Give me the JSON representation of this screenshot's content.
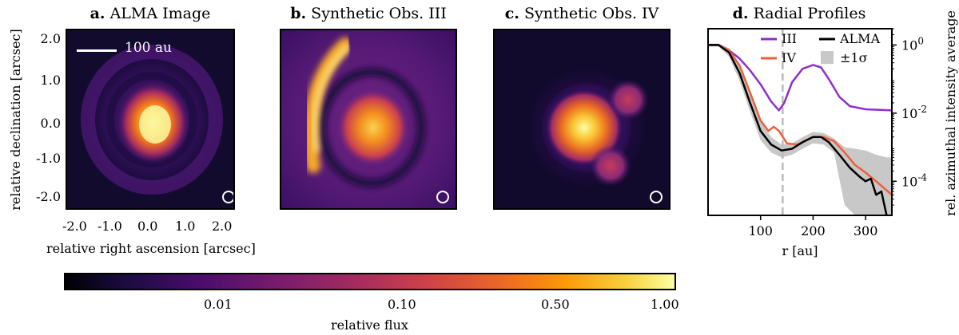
{
  "panels": [
    {
      "letter": "a.",
      "title": "ALMA Image"
    },
    {
      "letter": "b.",
      "title": "Synthetic Obs. III"
    },
    {
      "letter": "c.",
      "title": "Synthetic Obs. IV"
    },
    {
      "letter": "d.",
      "title": "Radial Profiles"
    }
  ],
  "image_axes": {
    "xlabel": "relative right ascension [arcsec]",
    "ylabel": "relative declination [arcsec]",
    "xticks": [
      "-2.0",
      "-1.0",
      "0.0",
      "1.0",
      "2.0"
    ],
    "yticks": [
      "2.0",
      "1.0",
      "0.0",
      "-1.0",
      "-2.0"
    ],
    "scalebar_label": "100 au"
  },
  "colorbar": {
    "label": "relative flux",
    "ticks": [
      "0.01",
      "0.10",
      "0.50",
      "1.00"
    ],
    "tick_values": [
      0.01,
      0.1,
      0.5,
      1.0
    ],
    "range": [
      0.001,
      1.0
    ],
    "scale": "log",
    "colormap": "inferno"
  },
  "chart_data": {
    "type": "line",
    "xlabel": "r [au]",
    "ylabel": "rel. azimuthal intensity average",
    "xlim": [
      0,
      350
    ],
    "ylim": [
      1e-05,
      3
    ],
    "yscale": "log",
    "xticks": [
      "100",
      "200",
      "300"
    ],
    "yticks": [
      "10^0",
      "10^-2",
      "10^-4"
    ],
    "vline_x": 142,
    "legend_entries": [
      "III",
      "IV",
      "ALMA",
      "±1σ"
    ],
    "series": [
      {
        "name": "III",
        "color": "#8e2fcf",
        "x": [
          0,
          20,
          40,
          60,
          80,
          100,
          120,
          135,
          145,
          160,
          180,
          200,
          215,
          230,
          250,
          270,
          300,
          350
        ],
        "y": [
          1.0,
          1.0,
          0.7,
          0.4,
          0.18,
          0.07,
          0.022,
          0.012,
          0.02,
          0.08,
          0.2,
          0.26,
          0.22,
          0.1,
          0.03,
          0.016,
          0.013,
          0.012
        ]
      },
      {
        "name": "IV",
        "color": "#ef5f3c",
        "x": [
          0,
          20,
          40,
          60,
          80,
          100,
          115,
          125,
          135,
          150,
          170,
          200,
          220,
          240,
          260,
          280,
          300,
          320,
          350
        ],
        "y": [
          1.0,
          1.0,
          0.7,
          0.25,
          0.04,
          0.006,
          0.003,
          0.004,
          0.003,
          0.0013,
          0.0012,
          0.002,
          0.002,
          0.0015,
          0.0007,
          0.0003,
          0.00018,
          0.0001,
          4e-05
        ]
      },
      {
        "name": "ALMA",
        "color": "#000000",
        "x": [
          0,
          20,
          40,
          60,
          80,
          100,
          120,
          140,
          160,
          180,
          200,
          215,
          230,
          250,
          270,
          290,
          300,
          310,
          320,
          330,
          340
        ],
        "y": [
          1.0,
          1.0,
          0.6,
          0.15,
          0.02,
          0.003,
          0.0012,
          0.0008,
          0.0009,
          0.0014,
          0.002,
          0.002,
          0.0014,
          0.0006,
          0.00025,
          0.00013,
          0.0001,
          0.00012,
          4e-05,
          5e-05,
          1e-05
        ]
      }
    ],
    "band": {
      "name": "±1σ",
      "color": "#c8c8c8",
      "x": [
        0,
        20,
        40,
        60,
        80,
        100,
        120,
        140,
        160,
        180,
        200,
        220,
        240,
        260,
        280,
        300,
        320,
        340,
        350
      ],
      "upper": [
        1.1,
        1.1,
        0.8,
        0.25,
        0.04,
        0.006,
        0.002,
        0.0012,
        0.0013,
        0.002,
        0.0028,
        0.0026,
        0.0018,
        0.001,
        0.0009,
        0.0008,
        0.0006,
        0.0005,
        0.0005
      ],
      "lower": [
        0.9,
        0.9,
        0.45,
        0.09,
        0.011,
        0.0016,
        0.0007,
        0.0005,
        0.0006,
        0.0009,
        0.0013,
        0.0012,
        0.0007,
        2e-05,
        1e-05,
        1e-05,
        1e-05,
        1e-05,
        1e-05
      ]
    }
  }
}
